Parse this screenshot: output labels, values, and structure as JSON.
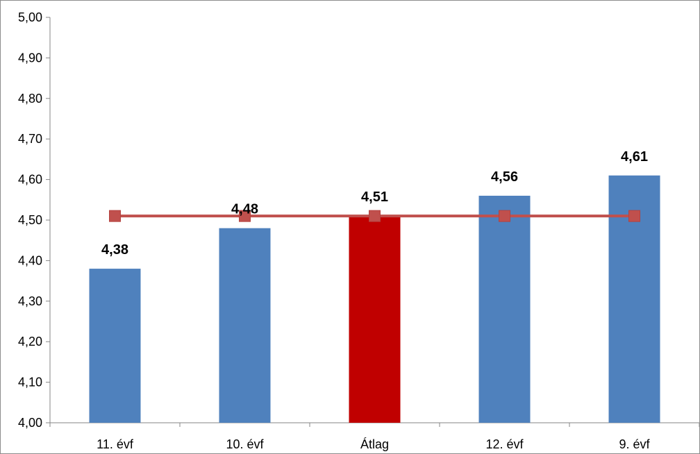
{
  "chart_data": {
    "type": "bar",
    "categories": [
      "11. évf",
      "10. évf",
      "Átlag",
      "12. évf",
      "9. évf"
    ],
    "values": [
      4.38,
      4.48,
      4.51,
      4.56,
      4.61
    ],
    "value_labels": [
      "4,38",
      "4,48",
      "4,51",
      "4,56",
      "4,61"
    ],
    "bar_colors": [
      "#4f81bd",
      "#4f81bd",
      "#c00000",
      "#4f81bd",
      "#4f81bd"
    ],
    "line_series": {
      "values": [
        4.51,
        4.51,
        4.51,
        4.51,
        4.51
      ],
      "color": "#c0504d",
      "marker": "square"
    },
    "ylim": [
      4.0,
      5.0
    ],
    "yticks": [
      4.0,
      4.1,
      4.2,
      4.3,
      4.4,
      4.5,
      4.6,
      4.7,
      4.8,
      4.9,
      5.0
    ],
    "ytick_labels": [
      "4,00",
      "4,10",
      "4,20",
      "4,30",
      "4,40",
      "4,50",
      "4,60",
      "4,70",
      "4,80",
      "4,90",
      "5,00"
    ],
    "title": "",
    "xlabel": "",
    "ylabel": "",
    "grid": false,
    "legend": "none"
  }
}
